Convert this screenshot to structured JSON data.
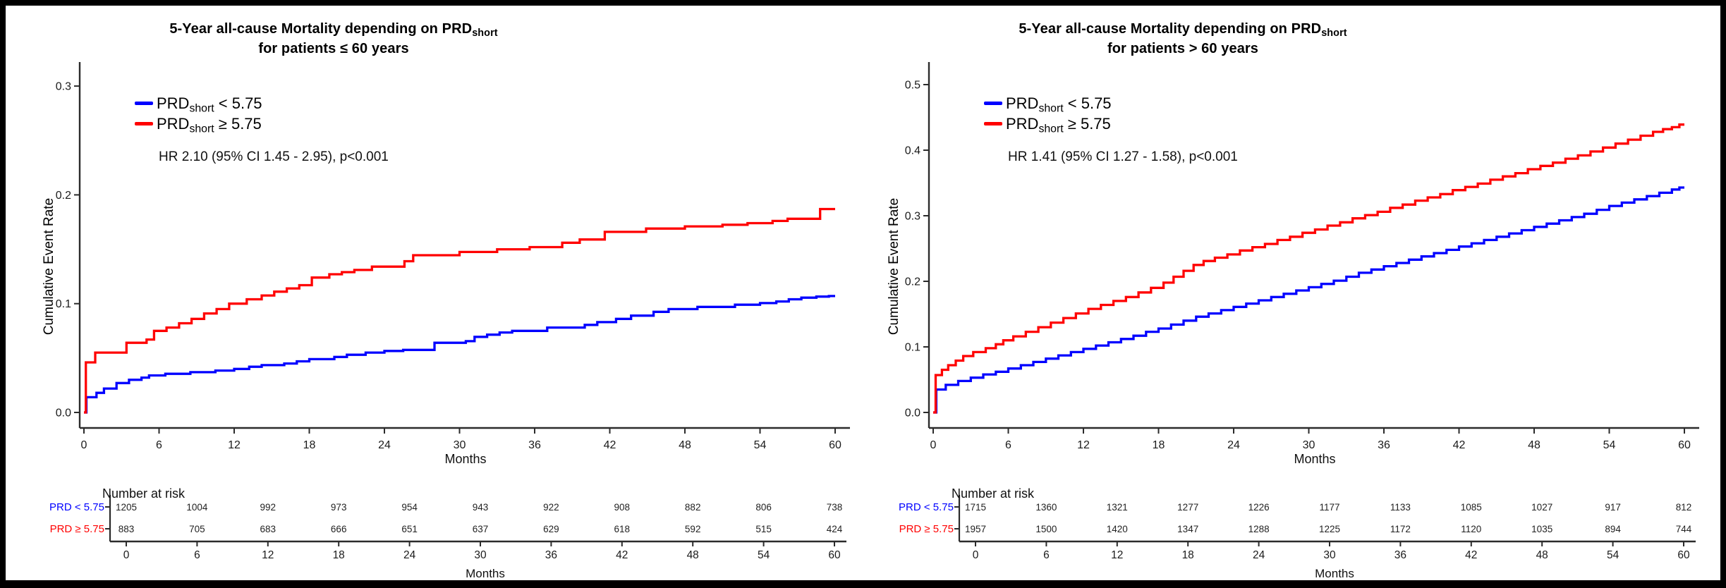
{
  "figure": {
    "background": "#ffffff",
    "frame_color": "#000000"
  },
  "colors": {
    "series_low": "#0000ff",
    "series_high": "#ff0000",
    "axis": "#2b2b2b",
    "tick_text": "#1a1a1a",
    "count_text": "#222222"
  },
  "chart_data": [
    {
      "type": "line",
      "panel": "left",
      "title_parts": {
        "line1_pre": "5-Year all-cause Mortality depending on ",
        "line1_prd": "PRD",
        "line1_sub": "short",
        "line2": "for patients ≤ 60 years"
      },
      "xlabel": "Months",
      "ylabel": "Cumulative Event Rate",
      "xlim": [
        0,
        60
      ],
      "ylim": [
        0,
        0.3
      ],
      "x_ticks": [
        0,
        6,
        12,
        18,
        24,
        30,
        36,
        42,
        48,
        54,
        60
      ],
      "y_ticks": [
        "0.0",
        "0.1",
        "0.2",
        "0.3"
      ],
      "legend": [
        {
          "pre": "PRD",
          "sub": "short",
          "rest": " < 5.75",
          "color": "#0000ff"
        },
        {
          "pre": "PRD",
          "sub": "short",
          "rest": " ≥ 5.75",
          "color": "#ff0000"
        }
      ],
      "annotation": "HR 2.10 (95% CI 1.45 - 2.95), p<0.001",
      "series": [
        {
          "name": "PRDshort < 5.75",
          "color": "#0000ff",
          "step_points": [
            [
              0,
              0
            ],
            [
              0.2,
              0.014
            ],
            [
              1,
              0.018
            ],
            [
              1.6,
              0.022
            ],
            [
              2.6,
              0.027
            ],
            [
              3.6,
              0.03
            ],
            [
              4.6,
              0.032
            ],
            [
              5.2,
              0.034
            ],
            [
              6.5,
              0.0355
            ],
            [
              8.5,
              0.037
            ],
            [
              10.5,
              0.0385
            ],
            [
              12,
              0.04
            ],
            [
              13.2,
              0.042
            ],
            [
              14.2,
              0.0435
            ],
            [
              16,
              0.045
            ],
            [
              17,
              0.047
            ],
            [
              18,
              0.049
            ],
            [
              20,
              0.051
            ],
            [
              21,
              0.053
            ],
            [
              22.5,
              0.055
            ],
            [
              24,
              0.0565
            ],
            [
              25.5,
              0.0575
            ],
            [
              28,
              0.064
            ],
            [
              30.5,
              0.0655
            ],
            [
              31.2,
              0.0695
            ],
            [
              32.2,
              0.0715
            ],
            [
              33.2,
              0.0735
            ],
            [
              34.2,
              0.075
            ],
            [
              37,
              0.078
            ],
            [
              40,
              0.0805
            ],
            [
              41,
              0.083
            ],
            [
              42.5,
              0.086
            ],
            [
              43.7,
              0.089
            ],
            [
              45.5,
              0.0925
            ],
            [
              46.7,
              0.095
            ],
            [
              49,
              0.097
            ],
            [
              52,
              0.099
            ],
            [
              54,
              0.1005
            ],
            [
              55.3,
              0.102
            ],
            [
              56.3,
              0.104
            ],
            [
              57.3,
              0.1055
            ],
            [
              58.5,
              0.1065
            ],
            [
              59.5,
              0.107
            ]
          ]
        },
        {
          "name": "PRDshort ≥ 5.75",
          "color": "#ff0000",
          "step_points": [
            [
              0,
              0
            ],
            [
              0.15,
              0.046
            ],
            [
              0.9,
              0.055
            ],
            [
              3.4,
              0.064
            ],
            [
              5,
              0.067
            ],
            [
              5.6,
              0.075
            ],
            [
              6.6,
              0.078
            ],
            [
              7.6,
              0.082
            ],
            [
              8.6,
              0.086
            ],
            [
              9.6,
              0.091
            ],
            [
              10.6,
              0.095
            ],
            [
              11.6,
              0.1
            ],
            [
              13,
              0.104
            ],
            [
              14.2,
              0.1075
            ],
            [
              15.2,
              0.111
            ],
            [
              16.2,
              0.114
            ],
            [
              17.2,
              0.117
            ],
            [
              18.2,
              0.124
            ],
            [
              19.6,
              0.127
            ],
            [
              20.6,
              0.129
            ],
            [
              21.6,
              0.131
            ],
            [
              23,
              0.134
            ],
            [
              25.6,
              0.139
            ],
            [
              26.3,
              0.1445
            ],
            [
              30,
              0.1475
            ],
            [
              33,
              0.15
            ],
            [
              35.6,
              0.152
            ],
            [
              38.2,
              0.156
            ],
            [
              39.6,
              0.159
            ],
            [
              41.6,
              0.166
            ],
            [
              44.9,
              0.169
            ],
            [
              48,
              0.171
            ],
            [
              51,
              0.1725
            ],
            [
              53,
              0.174
            ],
            [
              55,
              0.176
            ],
            [
              56.2,
              0.178
            ],
            [
              58.8,
              0.187
            ]
          ]
        }
      ],
      "risk_table": {
        "header": "Number at risk",
        "xlabel": "Months",
        "x_ticks": [
          0,
          6,
          12,
          18,
          24,
          30,
          36,
          42,
          48,
          54,
          60
        ],
        "rows": [
          {
            "label": "PRD < 5.75",
            "color": "#0000ff",
            "counts": [
              1205,
              1004,
              992,
              973,
              954,
              943,
              922,
              908,
              882,
              806,
              738
            ]
          },
          {
            "label": "PRD ≥ 5.75",
            "color": "#ff0000",
            "counts": [
              883,
              705,
              683,
              666,
              651,
              637,
              629,
              618,
              592,
              515,
              424
            ]
          }
        ]
      }
    },
    {
      "type": "line",
      "panel": "right",
      "title_parts": {
        "line1_pre": "5-Year all-cause Mortality depending on ",
        "line1_prd": "PRD",
        "line1_sub": "short",
        "line2": "for patients > 60 years"
      },
      "xlabel": "Months",
      "ylabel": "Cumulative Event Rate",
      "xlim": [
        0,
        60
      ],
      "ylim": [
        0,
        0.5
      ],
      "x_ticks": [
        0,
        6,
        12,
        18,
        24,
        30,
        36,
        42,
        48,
        54,
        60
      ],
      "y_ticks": [
        "0.0",
        "0.1",
        "0.2",
        "0.3",
        "0.4",
        "0.5"
      ],
      "legend": [
        {
          "pre": "PRD",
          "sub": "short",
          "rest": " < 5.75",
          "color": "#0000ff"
        },
        {
          "pre": "PRD",
          "sub": "short",
          "rest": " ≥ 5.75",
          "color": "#ff0000"
        }
      ],
      "annotation": "HR 1.41 (95% CI 1.27 - 1.58), p<0.001",
      "series": [
        {
          "name": "PRDshort < 5.75",
          "color": "#0000ff",
          "step_points": [
            [
              0,
              0
            ],
            [
              0.25,
              0.035
            ],
            [
              1,
              0.042
            ],
            [
              2,
              0.048
            ],
            [
              3,
              0.053
            ],
            [
              4,
              0.058
            ],
            [
              5,
              0.062
            ],
            [
              6,
              0.067
            ],
            [
              7,
              0.072
            ],
            [
              8,
              0.077
            ],
            [
              9,
              0.082
            ],
            [
              10,
              0.087
            ],
            [
              11,
              0.092
            ],
            [
              12,
              0.097
            ],
            [
              13,
              0.102
            ],
            [
              14,
              0.107
            ],
            [
              15,
              0.112
            ],
            [
              16,
              0.117
            ],
            [
              17,
              0.123
            ],
            [
              18,
              0.128
            ],
            [
              19,
              0.134
            ],
            [
              20,
              0.14
            ],
            [
              21,
              0.146
            ],
            [
              22,
              0.151
            ],
            [
              23,
              0.156
            ],
            [
              24,
              0.161
            ],
            [
              25,
              0.166
            ],
            [
              26,
              0.171
            ],
            [
              27,
              0.176
            ],
            [
              28,
              0.181
            ],
            [
              29,
              0.186
            ],
            [
              30,
              0.191
            ],
            [
              31,
              0.196
            ],
            [
              32,
              0.201
            ],
            [
              33,
              0.207
            ],
            [
              34,
              0.213
            ],
            [
              35,
              0.218
            ],
            [
              36,
              0.223
            ],
            [
              37,
              0.228
            ],
            [
              38,
              0.233
            ],
            [
              39,
              0.238
            ],
            [
              40,
              0.243
            ],
            [
              41,
              0.248
            ],
            [
              42,
              0.253
            ],
            [
              43,
              0.258
            ],
            [
              44,
              0.263
            ],
            [
              45,
              0.268
            ],
            [
              46,
              0.273
            ],
            [
              47,
              0.278
            ],
            [
              48,
              0.283
            ],
            [
              49,
              0.288
            ],
            [
              50,
              0.293
            ],
            [
              51,
              0.298
            ],
            [
              52,
              0.303
            ],
            [
              53,
              0.309
            ],
            [
              54,
              0.315
            ],
            [
              55,
              0.32
            ],
            [
              56,
              0.325
            ],
            [
              57,
              0.33
            ],
            [
              58,
              0.335
            ],
            [
              59,
              0.34
            ],
            [
              59.6,
              0.343
            ]
          ]
        },
        {
          "name": "PRDshort ≥ 5.75",
          "color": "#ff0000",
          "step_points": [
            [
              0,
              0
            ],
            [
              0.2,
              0.057
            ],
            [
              0.7,
              0.065
            ],
            [
              1.2,
              0.072
            ],
            [
              1.8,
              0.079
            ],
            [
              2.4,
              0.086
            ],
            [
              3.2,
              0.092
            ],
            [
              4.2,
              0.098
            ],
            [
              5,
              0.104
            ],
            [
              5.6,
              0.11
            ],
            [
              6.4,
              0.116
            ],
            [
              7.4,
              0.123
            ],
            [
              8.4,
              0.13
            ],
            [
              9.4,
              0.137
            ],
            [
              10.4,
              0.144
            ],
            [
              11.4,
              0.151
            ],
            [
              12.4,
              0.158
            ],
            [
              13.4,
              0.164
            ],
            [
              14.4,
              0.17
            ],
            [
              15.4,
              0.176
            ],
            [
              16.4,
              0.183
            ],
            [
              17.4,
              0.19
            ],
            [
              18.4,
              0.198
            ],
            [
              19.2,
              0.207
            ],
            [
              20,
              0.216
            ],
            [
              20.8,
              0.225
            ],
            [
              21.6,
              0.231
            ],
            [
              22.5,
              0.236
            ],
            [
              23.5,
              0.241
            ],
            [
              24.5,
              0.247
            ],
            [
              25.5,
              0.252
            ],
            [
              26.5,
              0.257
            ],
            [
              27.5,
              0.263
            ],
            [
              28.5,
              0.268
            ],
            [
              29.5,
              0.274
            ],
            [
              30.5,
              0.279
            ],
            [
              31.5,
              0.285
            ],
            [
              32.5,
              0.29
            ],
            [
              33.5,
              0.296
            ],
            [
              34.5,
              0.301
            ],
            [
              35.5,
              0.306
            ],
            [
              36.5,
              0.312
            ],
            [
              37.5,
              0.317
            ],
            [
              38.5,
              0.323
            ],
            [
              39.5,
              0.328
            ],
            [
              40.5,
              0.333
            ],
            [
              41.5,
              0.339
            ],
            [
              42.5,
              0.344
            ],
            [
              43.5,
              0.349
            ],
            [
              44.5,
              0.355
            ],
            [
              45.5,
              0.36
            ],
            [
              46.5,
              0.365
            ],
            [
              47.5,
              0.371
            ],
            [
              48.5,
              0.376
            ],
            [
              49.5,
              0.381
            ],
            [
              50.5,
              0.387
            ],
            [
              51.5,
              0.392
            ],
            [
              52.5,
              0.398
            ],
            [
              53.5,
              0.404
            ],
            [
              54.5,
              0.41
            ],
            [
              55.5,
              0.416
            ],
            [
              56.5,
              0.422
            ],
            [
              57.5,
              0.428
            ],
            [
              58.3,
              0.432
            ],
            [
              59,
              0.435
            ],
            [
              59.6,
              0.439
            ]
          ]
        }
      ],
      "risk_table": {
        "header": "Number at risk",
        "xlabel": "Months",
        "x_ticks": [
          0,
          6,
          12,
          18,
          24,
          30,
          36,
          42,
          48,
          54,
          60
        ],
        "rows": [
          {
            "label": "PRD < 5.75",
            "color": "#0000ff",
            "counts": [
              1715,
              1360,
              1321,
              1277,
              1226,
              1177,
              1133,
              1085,
              1027,
              917,
              812
            ]
          },
          {
            "label": "PRD ≥ 5.75",
            "color": "#ff0000",
            "counts": [
              1957,
              1500,
              1420,
              1347,
              1288,
              1225,
              1172,
              1120,
              1035,
              894,
              744
            ]
          }
        ]
      }
    }
  ]
}
